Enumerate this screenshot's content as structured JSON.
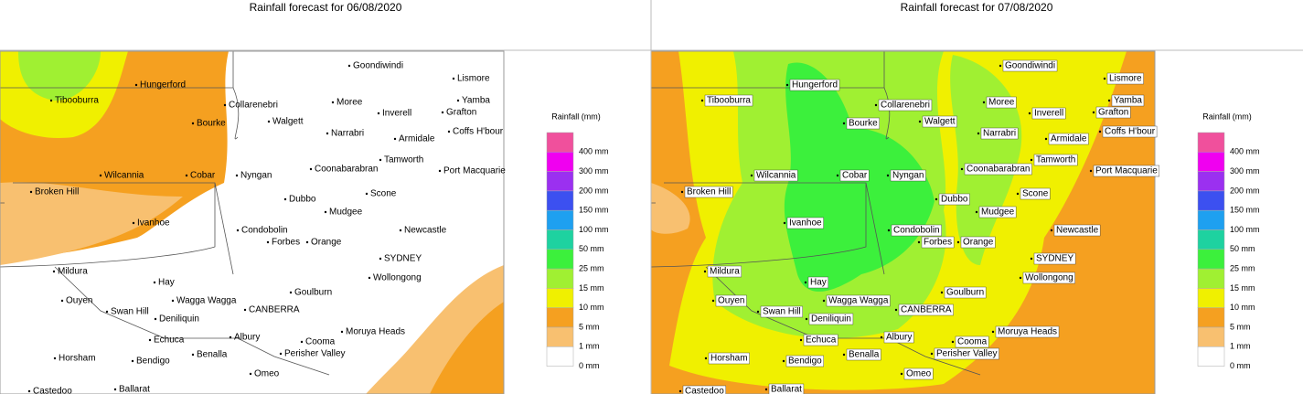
{
  "panels": [
    {
      "title": "Rainfall forecast for 06/08/2020"
    },
    {
      "title": "Rainfall forecast for 07/08/2020"
    }
  ],
  "towns": [
    "Tibooburra",
    "Hungerford",
    "Bourke",
    "Collarenebri",
    "Walgett",
    "Moree",
    "Goondiwindi",
    "Lismore",
    "Yamba",
    "Grafton",
    "Inverell",
    "Coffs H'bour",
    "Narrabri",
    "Armidale",
    "Tamworth",
    "Coonabarabran",
    "Port Macquarie",
    "Wilcannia",
    "Cobar",
    "Nyngan",
    "Broken Hill",
    "Dubbo",
    "Scone",
    "Mudgee",
    "Ivanhoe",
    "Newcastle",
    "Condobolin",
    "Forbes",
    "Orange",
    "SYDNEY",
    "Wollongong",
    "Mildura",
    "Hay",
    "Goulburn",
    "Ouyen",
    "Wagga Wagga",
    "CANBERRA",
    "Swan Hill",
    "Deniliquin",
    "Moruya Heads",
    "Echuca",
    "Albury",
    "Cooma",
    "Perisher Valley",
    "Horsham",
    "Bendigo",
    "Benalla",
    "Omeo",
    "Castedoo",
    "Ballarat"
  ],
  "legend": {
    "title": "Rainfall (mm)",
    "items": [
      {
        "label": "400 mm",
        "color": "#f0509c"
      },
      {
        "label": "300 mm",
        "color": "#f000f0"
      },
      {
        "label": "200 mm",
        "color": "#9b30f0"
      },
      {
        "label": "150 mm",
        "color": "#3c50f0"
      },
      {
        "label": "100 mm",
        "color": "#1ea0f0"
      },
      {
        "label": "50 mm",
        "color": "#1ed2a0"
      },
      {
        "label": "25 mm",
        "color": "#3cf03c"
      },
      {
        "label": "15 mm",
        "color": "#a0f032"
      },
      {
        "label": "10 mm",
        "color": "#f0f000"
      },
      {
        "label": "5 mm",
        "color": "#f5a020"
      },
      {
        "label": "1 mm",
        "color": "#f8c070"
      },
      {
        "label": "0 mm",
        "color": "#ffffff"
      }
    ]
  }
}
